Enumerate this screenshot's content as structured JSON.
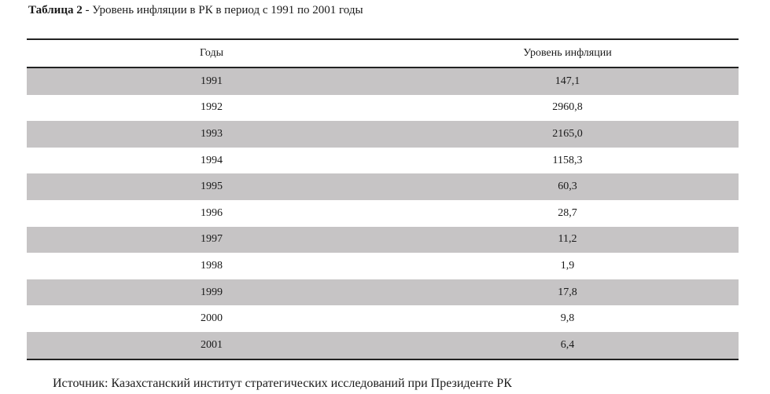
{
  "caption": {
    "number": "Таблица 2",
    "text": " - Уровень инфляции в РК в период с 1991 по 2001 годы"
  },
  "table": {
    "headers": [
      "Годы",
      "Уровень инфляции"
    ],
    "rows": [
      [
        "1991",
        "147,1"
      ],
      [
        "1992",
        "2960,8"
      ],
      [
        "1993",
        "2165,0"
      ],
      [
        "1994",
        "1158,3"
      ],
      [
        "1995",
        "60,3"
      ],
      [
        "1996",
        "28,7"
      ],
      [
        "1997",
        "11,2"
      ],
      [
        "1998",
        "1,9"
      ],
      [
        "1999",
        "17,8"
      ],
      [
        "2000",
        "9,8"
      ],
      [
        "2001",
        "6,4"
      ]
    ],
    "shade_color": "#c6c4c5"
  },
  "source": "Источник: Казахстанский институт стратегических исследований при Президенте РК"
}
